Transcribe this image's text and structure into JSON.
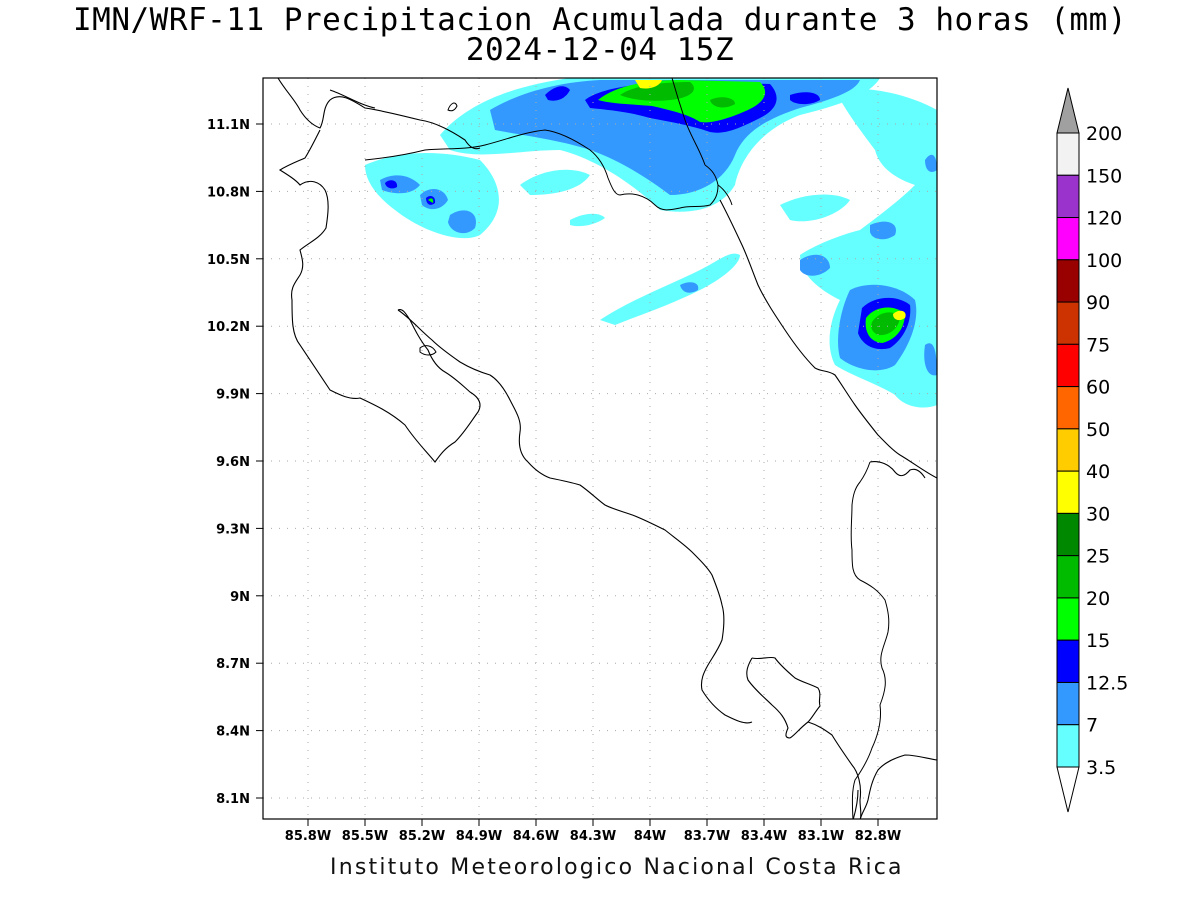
{
  "title_line1": "IMN/WRF-11 Precipitacion Acumulada durante 3 horas (mm)",
  "title_line2": "2024-12-04 15Z",
  "footer": "Instituto Meteorologico Nacional Costa Rica",
  "map": {
    "lon_labels": [
      "85.8W",
      "85.5W",
      "85.2W",
      "84.9W",
      "84.6W",
      "84.3W",
      "84W",
      "83.7W",
      "83.4W",
      "83.1W",
      "82.8W"
    ],
    "lat_labels": [
      "11.1N",
      "10.8N",
      "10.5N",
      "10.2N",
      "9.9N",
      "9.6N",
      "9.3N",
      "9N",
      "8.7N",
      "8.4N",
      "8.1N"
    ],
    "lon_values": [
      -85.8,
      -85.5,
      -85.2,
      -84.9,
      -84.6,
      -84.3,
      -84.0,
      -83.7,
      -83.4,
      -83.1,
      -82.8
    ],
    "lat_values": [
      11.1,
      10.8,
      10.5,
      10.2,
      9.9,
      9.6,
      9.3,
      9.0,
      8.7,
      8.4,
      8.1
    ]
  },
  "colorbar": {
    "labels": [
      "200",
      "150",
      "120",
      "100",
      "90",
      "75",
      "60",
      "50",
      "40",
      "30",
      "25",
      "20",
      "15",
      "12.5",
      "7",
      "3.5"
    ],
    "colors": [
      "#f2f2f2",
      "#9a33cc",
      "#ff00ff",
      "#990000",
      "#cc3300",
      "#ff0000",
      "#ff6600",
      "#ffcc00",
      "#ffff00",
      "#008800",
      "#00bb00",
      "#00ff00",
      "#0000ff",
      "#3399ff",
      "#66ffff"
    ],
    "over_color": "#a0a0a0",
    "under_color": "#ffffff"
  },
  "colors": {
    "rain_3_5": "#66ffff",
    "rain_7": "#3399ff",
    "rain_12_5": "#0000ff",
    "rain_15": "#00ff00",
    "rain_20": "#00bb00",
    "rain_30": "#ffff00"
  }
}
